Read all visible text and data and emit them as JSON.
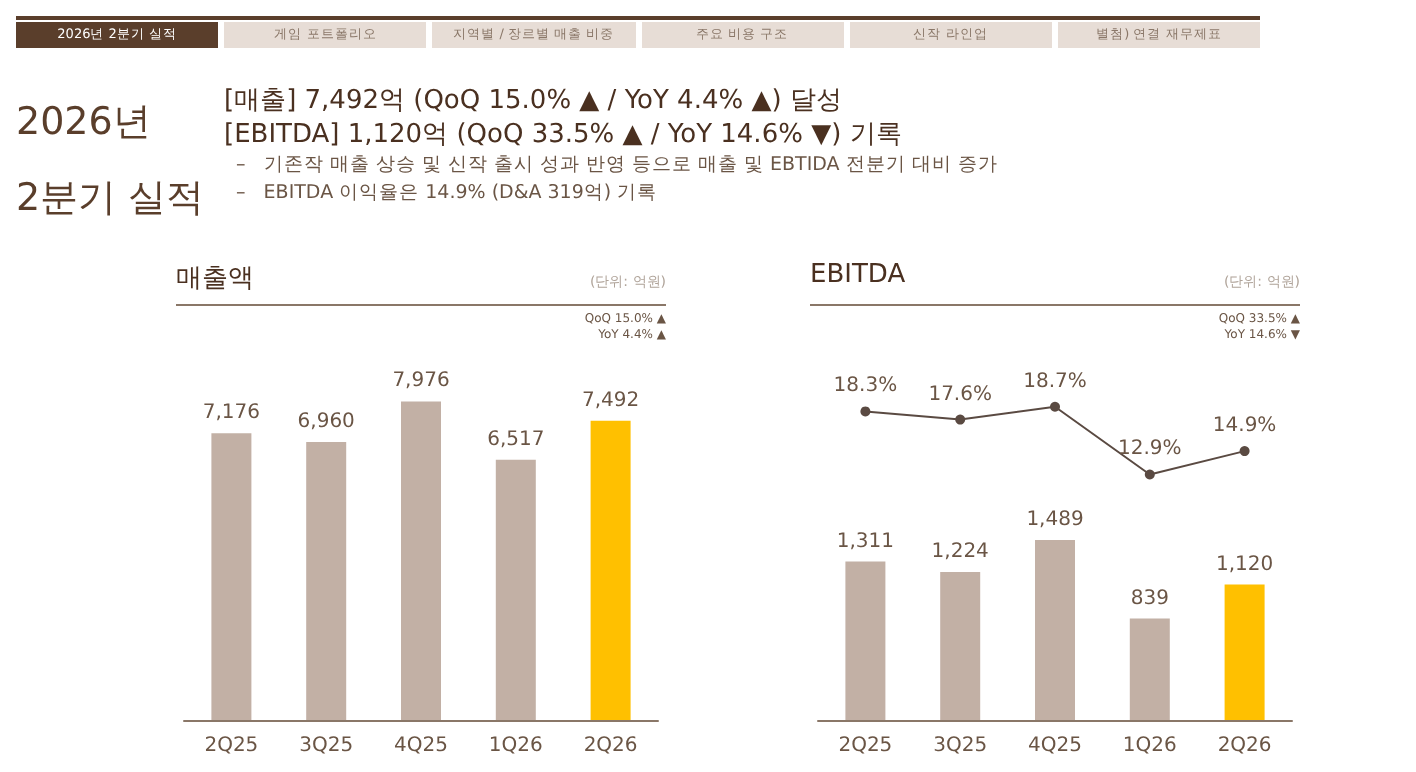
{
  "chart_data": [
    {
      "type": "other",
      "title": "2026년 2분기 실적",
      "annotations": [
        "2026년 2분기 실적",
        "게임 포트폴리오",
        "지역별 / 장르별 매출 비중",
        "주요 비용 구조",
        "신작 라인업",
        "별첨) 연결 재무제표",
        "[매출] 7,492억 (QoQ 15.0% ▲ / YoY 4.4% ▲) 달성",
        "[EBITDA] 1,120억 (QoQ 33.5% ▲ / YoY 14.6% ▼) 기록",
        "–   기존작 매출 상승 및 신작 출시 성과 반영 등으로 매출 및 EBTIDA 전분기 대비 증가",
        "–   EBITDA 이익율은 14.9% (D&A 319억) 기록",
        "EBITDA",
        "(단위: 억원)",
        "QoQ 33.5% ▲",
        "YoY 14.6% ▼"
      ]
    },
    {
      "type": "bar",
      "title": "매출액",
      "subtitle": "(단위: 억원)",
      "annotations": [
        "QoQ 15.0% ▲",
        "YoY 4.4% ▲"
      ],
      "categories": [
        "2Q25",
        "3Q25",
        "4Q25",
        "1Q26",
        "2Q26"
      ],
      "values": [
        7176,
        6960,
        7976,
        6517,
        7492
      ],
      "value_labels": [
        "7,176",
        "6,960",
        "7,976",
        "6,517",
        "7,492"
      ],
      "colors": [
        "#c2b0a5",
        "#c2b0a5",
        "#c2b0a5",
        "#c2b0a5",
        "#ffc000"
      ],
      "tick_labels": "x",
      "grid": false
    },
    {
      "type": "bar",
      "categories": [
        "2Q25",
        "3Q25",
        "4Q25",
        "1Q26",
        "2Q26"
      ],
      "values": [
        1311,
        1224,
        1489,
        839,
        1120
      ],
      "value_labels": [
        "1,311",
        "1,224",
        "1,489",
        "839",
        "1,120"
      ],
      "colors": [
        "#c2b0a5",
        "#c2b0a5",
        "#c2b0a5",
        "#c2b0a5",
        "#ffc000"
      ],
      "tick_labels": "x",
      "grid": false
    },
    {
      "type": "line",
      "categories": [
        null,
        null,
        null,
        null,
        null
      ],
      "values": [
        18.3,
        17.6,
        18.7,
        12.9,
        14.9
      ],
      "value_labels": [
        "18.3%",
        "17.6%",
        "18.7%",
        "12.9%",
        "14.9%"
      ],
      "color": "#5a4a42",
      "marker": "circle",
      "tick_labels": false
    }
  ]
}
